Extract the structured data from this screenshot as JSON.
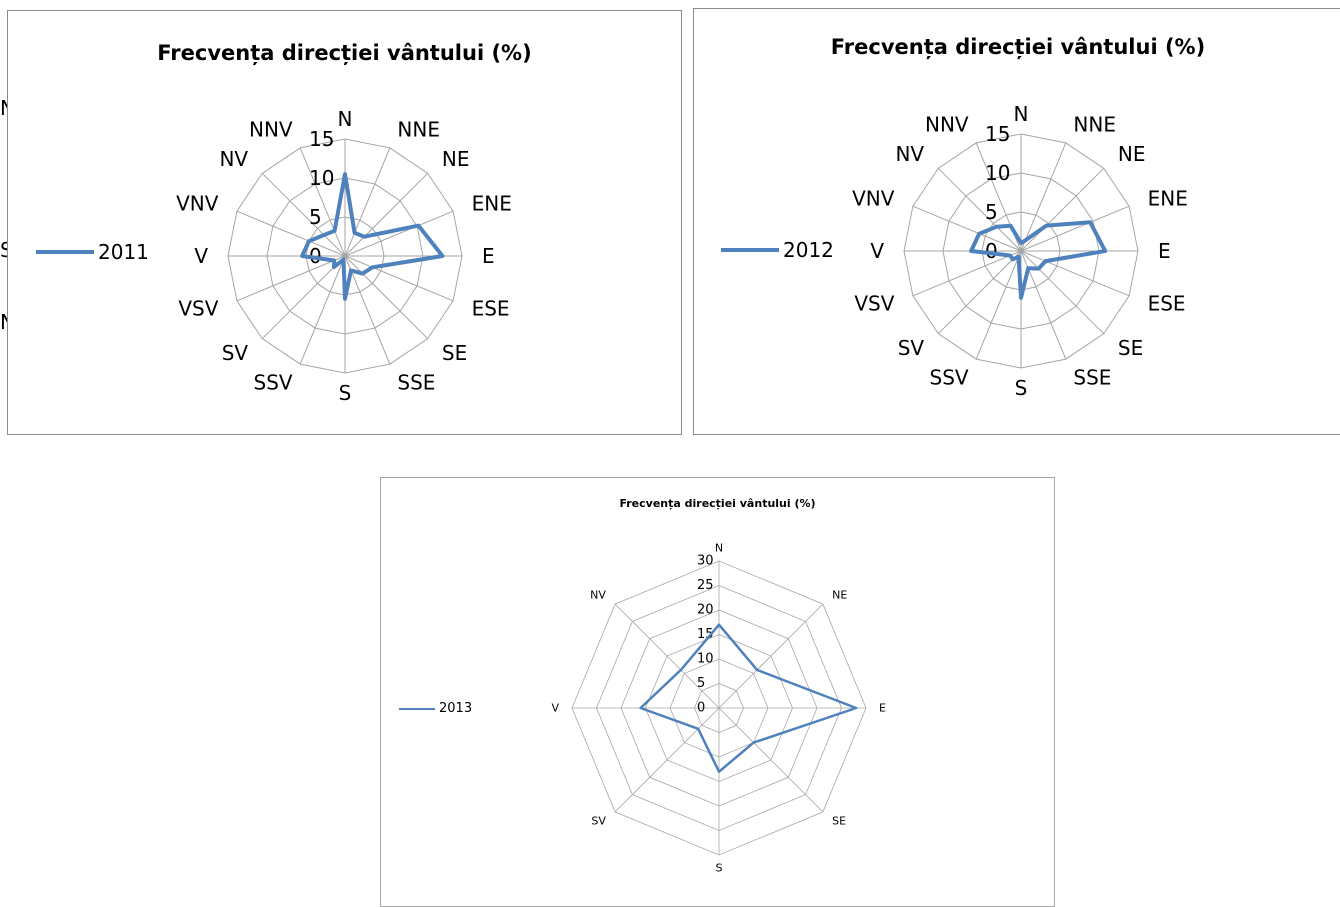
{
  "background_fragments": [
    "N",
    "S",
    "N"
  ],
  "chart_data": [
    {
      "type": "radar",
      "title": "Frecvența direcției vântului (%)",
      "categories": [
        "N",
        "NNE",
        "NE",
        "ENE",
        "E",
        "ESE",
        "SE",
        "SSE",
        "S",
        "SSV",
        "SV",
        "VSV",
        "V",
        "VNV",
        "NV",
        "NNV"
      ],
      "series": [
        {
          "name": "2011",
          "values": [
            10.5,
            3.2,
            3.5,
            10.2,
            12.5,
            3.8,
            3.2,
            2.0,
            5.5,
            0.5,
            2.0,
            1.5,
            5.5,
            5.0,
            3.8,
            3.5
          ]
        }
      ],
      "radial_ticks": [
        "0",
        "5",
        "10",
        "15"
      ],
      "rlim": [
        0,
        15
      ],
      "grid": true,
      "legend": "left",
      "color": "#4F81BD"
    },
    {
      "type": "radar",
      "title": "Frecvența direcției vântului (%)",
      "categories": [
        "N",
        "NNE",
        "NE",
        "ENE",
        "E",
        "ESE",
        "SE",
        "SSE",
        "S",
        "SSV",
        "SV",
        "VSV",
        "V",
        "VNV",
        "NV",
        "NNV"
      ],
      "series": [
        {
          "name": "2012",
          "values": [
            1.0,
            1.5,
            4.6,
            9.6,
            10.8,
            3.4,
            3.2,
            2.4,
            6.0,
            0.8,
            1.5,
            1.5,
            6.4,
            5.8,
            4.4,
            3.5
          ]
        }
      ],
      "radial_ticks": [
        "0",
        "5",
        "10",
        "15"
      ],
      "rlim": [
        0,
        15
      ],
      "grid": true,
      "legend": "left",
      "color": "#4F81BD"
    },
    {
      "type": "radar",
      "title": "Frecvența direcției vântului (%)",
      "categories": [
        "N",
        "NE",
        "E",
        "SE",
        "S",
        "SV",
        "V",
        "NV"
      ],
      "series": [
        {
          "name": "2013",
          "values": [
            17,
            11,
            28,
            10,
            13,
            6,
            16,
            11
          ]
        }
      ],
      "radial_ticks": [
        "0",
        "5",
        "10",
        "15",
        "20",
        "25",
        "30"
      ],
      "rlim": [
        0,
        30
      ],
      "grid": true,
      "legend": "left",
      "color": "#4F81BD"
    }
  ]
}
